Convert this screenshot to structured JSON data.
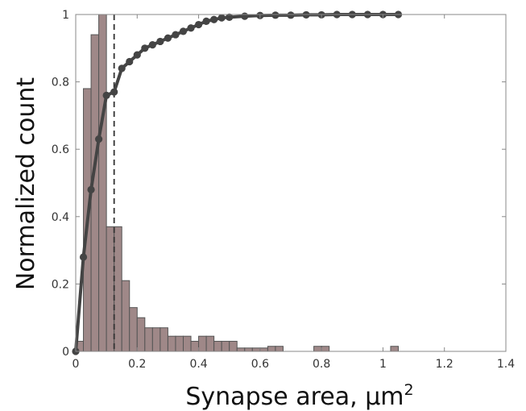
{
  "chart_data": {
    "type": "bar",
    "xlabel": "Synapse area, μm",
    "xlabel_superscript": "2",
    "ylabel": "Normalized count",
    "xlim": [
      0,
      1.4
    ],
    "ylim": [
      0,
      1
    ],
    "xticks": [
      "0",
      "0.2",
      "0.4",
      "0.6",
      "0.8",
      "1",
      "1.2",
      "1.4"
    ],
    "yticks": [
      "0",
      "0.2",
      "0.4",
      "0.6",
      "0.8",
      "1"
    ],
    "grid": false,
    "histogram": {
      "bin_width": 0.025,
      "bin_starts": [
        0.0,
        0.025,
        0.05,
        0.075,
        0.1,
        0.125,
        0.15,
        0.175,
        0.2,
        0.225,
        0.25,
        0.275,
        0.3,
        0.325,
        0.35,
        0.375,
        0.4,
        0.425,
        0.45,
        0.475,
        0.5,
        0.525,
        0.55,
        0.575,
        0.6,
        0.625,
        0.65,
        0.675,
        0.7,
        0.725,
        0.75,
        0.775,
        0.8,
        0.825,
        0.85,
        0.875,
        0.9,
        0.925,
        0.95,
        0.975,
        1.0,
        1.025
      ],
      "values": [
        0.03,
        0.78,
        0.94,
        1.0,
        0.37,
        0.37,
        0.21,
        0.13,
        0.1,
        0.07,
        0.07,
        0.07,
        0.045,
        0.045,
        0.045,
        0.03,
        0.045,
        0.045,
        0.03,
        0.03,
        0.03,
        0.01,
        0.01,
        0.01,
        0.01,
        0.015,
        0.015,
        0.0,
        0.0,
        0.0,
        0.0,
        0.015,
        0.015,
        0.0,
        0.0,
        0.0,
        0.0,
        0.0,
        0.0,
        0.0,
        0.0,
        0.015
      ]
    },
    "cumulative": {
      "x": [
        0.0,
        0.025,
        0.05,
        0.075,
        0.1,
        0.125,
        0.15,
        0.175,
        0.2,
        0.225,
        0.25,
        0.275,
        0.3,
        0.325,
        0.35,
        0.375,
        0.4,
        0.425,
        0.45,
        0.475,
        0.5,
        0.55,
        0.6,
        0.65,
        0.7,
        0.75,
        0.8,
        0.85,
        0.9,
        0.95,
        1.0,
        1.05
      ],
      "y": [
        0.0,
        0.28,
        0.48,
        0.63,
        0.76,
        0.77,
        0.84,
        0.86,
        0.88,
        0.9,
        0.91,
        0.92,
        0.93,
        0.94,
        0.95,
        0.96,
        0.97,
        0.98,
        0.985,
        0.99,
        0.992,
        0.995,
        0.997,
        0.998,
        0.998,
        0.999,
        0.999,
        1.0,
        1.0,
        1.0,
        1.0,
        1.0
      ]
    },
    "median_line_x": 0.125,
    "colors": {
      "bar_fill": "#9f8888",
      "bar_stroke": "#555555",
      "line": "#444444",
      "marker": "#444444",
      "dashed": "#333333",
      "axes": "#888888"
    }
  }
}
